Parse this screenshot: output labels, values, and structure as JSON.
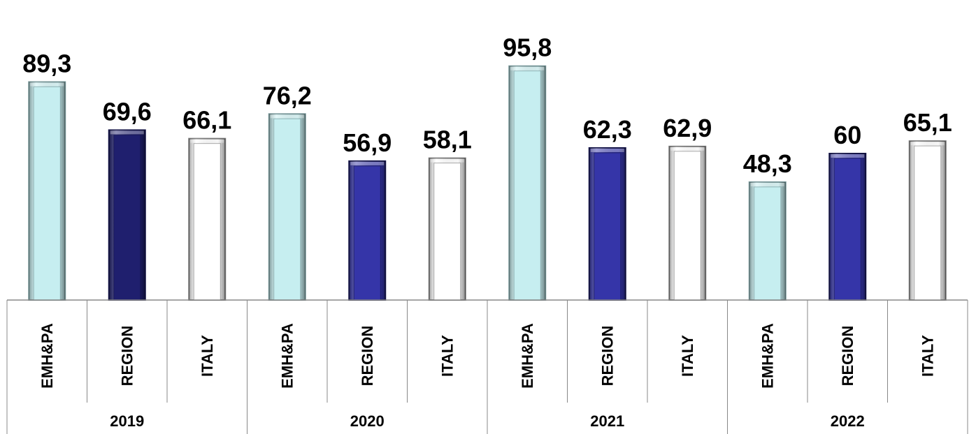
{
  "chart_data": {
    "type": "bar",
    "groups": [
      "2019",
      "2020",
      "2021",
      "2022"
    ],
    "categories": [
      "EMH&PA",
      "REGION",
      "ITALY"
    ],
    "values": [
      [
        89.3,
        69.6,
        66.1
      ],
      [
        76.2,
        56.9,
        58.1
      ],
      [
        95.8,
        62.3,
        62.9
      ],
      [
        48.3,
        60,
        65.1
      ]
    ],
    "value_labels": [
      [
        "89,3",
        "69,6",
        "66,1"
      ],
      [
        "76,2",
        "56,9",
        "58,1"
      ],
      [
        "95,8",
        "62,3",
        "62,9"
      ],
      [
        "48,3",
        "60",
        "65,1"
      ]
    ],
    "ylim": [
      0,
      100
    ],
    "grid": false,
    "colors": {
      "EMH&PA": "#c6eef0",
      "REGION_2019": "#1f1f6e",
      "REGION": "#3535a8",
      "ITALY": "#ffffff"
    },
    "title": "",
    "xlabel": "",
    "ylabel": ""
  }
}
